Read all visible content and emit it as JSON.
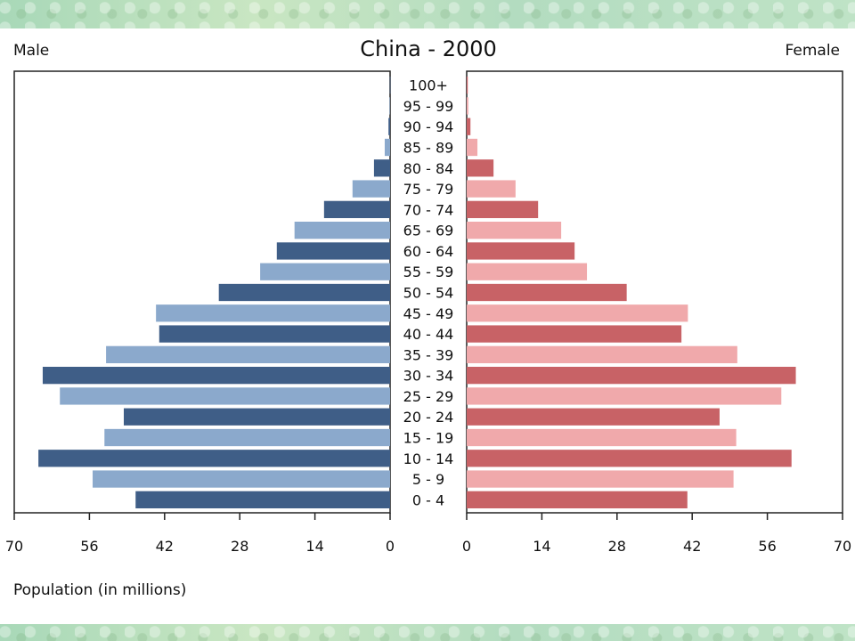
{
  "chart_data": {
    "type": "bar",
    "title": "China - 2000",
    "left_label": "Male",
    "right_label": "Female",
    "xlabel": "Population (in millions)",
    "xlim": [
      0,
      70
    ],
    "xticks": [
      "70",
      "56",
      "42",
      "28",
      "14",
      "0"
    ],
    "xticks_right": [
      "0",
      "14",
      "28",
      "42",
      "56",
      "70"
    ],
    "categories": [
      "100+",
      "95 - 99",
      "90 - 94",
      "85 - 89",
      "80 - 84",
      "75 - 79",
      "70 - 74",
      "65 - 69",
      "60 - 64",
      "55 - 59",
      "50 - 54",
      "45 - 49",
      "40 - 44",
      "35 - 39",
      "30 - 34",
      "25 - 29",
      "20 - 24",
      "15 - 19",
      "10 - 14",
      "5 - 9",
      "0 - 4"
    ],
    "series": [
      {
        "name": "Male",
        "values": [
          0.05,
          0.1,
          0.3,
          1.0,
          3.0,
          7.0,
          12.3,
          17.8,
          21.1,
          24.2,
          31.9,
          43.6,
          43.0,
          52.9,
          64.7,
          61.5,
          49.6,
          53.2,
          65.5,
          55.4,
          47.4
        ]
      },
      {
        "name": "Female",
        "values": [
          0.2,
          0.3,
          0.7,
          2.0,
          5.0,
          9.1,
          13.3,
          17.6,
          20.1,
          22.4,
          29.8,
          41.2,
          40.0,
          50.4,
          61.3,
          58.6,
          47.1,
          50.2,
          60.5,
          49.7,
          41.1
        ]
      }
    ],
    "colors": {
      "male_dark": "#3f5e87",
      "male_light": "#8ba9cc",
      "female_dark": "#c86266",
      "female_light": "#f0a9ab"
    },
    "grid": false
  }
}
